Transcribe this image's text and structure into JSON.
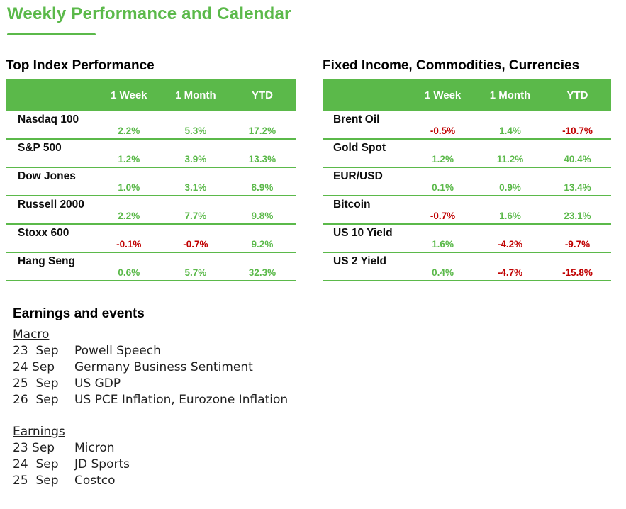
{
  "page": {
    "title": "Weekly Performance and Calendar"
  },
  "colors": {
    "green": "#5BB94A",
    "red": "#C00000"
  },
  "index_table": {
    "heading": "Top Index Performance",
    "columns": [
      "1 Week",
      "1 Month",
      "YTD"
    ],
    "rows": [
      {
        "label": "Nasdaq 100",
        "values": [
          "2.2%",
          "5.3%",
          "17.2%"
        ]
      },
      {
        "label": "S&P 500",
        "values": [
          "1.2%",
          "3.9%",
          "13.3%"
        ]
      },
      {
        "label": "Dow Jones",
        "values": [
          "1.0%",
          "3.1%",
          "8.9%"
        ]
      },
      {
        "label": "Russell 2000",
        "values": [
          "2.2%",
          "7.7%",
          "9.8%"
        ]
      },
      {
        "label": "Stoxx 600",
        "values": [
          "-0.1%",
          "-0.7%",
          "9.2%"
        ]
      },
      {
        "label": "Hang Seng",
        "values": [
          "0.6%",
          "5.7%",
          "32.3%"
        ]
      }
    ]
  },
  "ficc_table": {
    "heading": "Fixed Income, Commodities, Currencies",
    "columns": [
      "1 Week",
      "1 Month",
      "YTD"
    ],
    "rows": [
      {
        "label": "Brent Oil",
        "values": [
          "-0.5%",
          "1.4%",
          "-10.7%"
        ]
      },
      {
        "label": "Gold Spot",
        "values": [
          "1.2%",
          "11.2%",
          "40.4%"
        ]
      },
      {
        "label": "EUR/USD",
        "values": [
          "0.1%",
          "0.9%",
          "13.4%"
        ]
      },
      {
        "label": "Bitcoin",
        "values": [
          "-0.7%",
          "1.6%",
          "23.1%"
        ]
      },
      {
        "label": "US 10 Yield",
        "values": [
          "1.6%",
          "-4.2%",
          "-9.7%"
        ]
      },
      {
        "label": "US 2 Yield",
        "values": [
          "0.4%",
          "-4.7%",
          "-15.8%"
        ]
      }
    ]
  },
  "events": {
    "heading": "Earnings and events",
    "sections": [
      {
        "title": "Macro",
        "items": [
          {
            "date": "23  Sep",
            "name": "Powell Speech"
          },
          {
            "date": "24 Sep",
            "name": "Germany Business Sentiment"
          },
          {
            "date": "25  Sep",
            "name": "US GDP"
          },
          {
            "date": "26  Sep",
            "name": "US PCE Inflation, Eurozone Inflation"
          }
        ]
      },
      {
        "title": "Earnings",
        "items": [
          {
            "date": "23 Sep",
            "name": "Micron"
          },
          {
            "date": "24  Sep",
            "name": "JD Sports"
          },
          {
            "date": "25  Sep",
            "name": "Costco"
          }
        ]
      }
    ]
  }
}
